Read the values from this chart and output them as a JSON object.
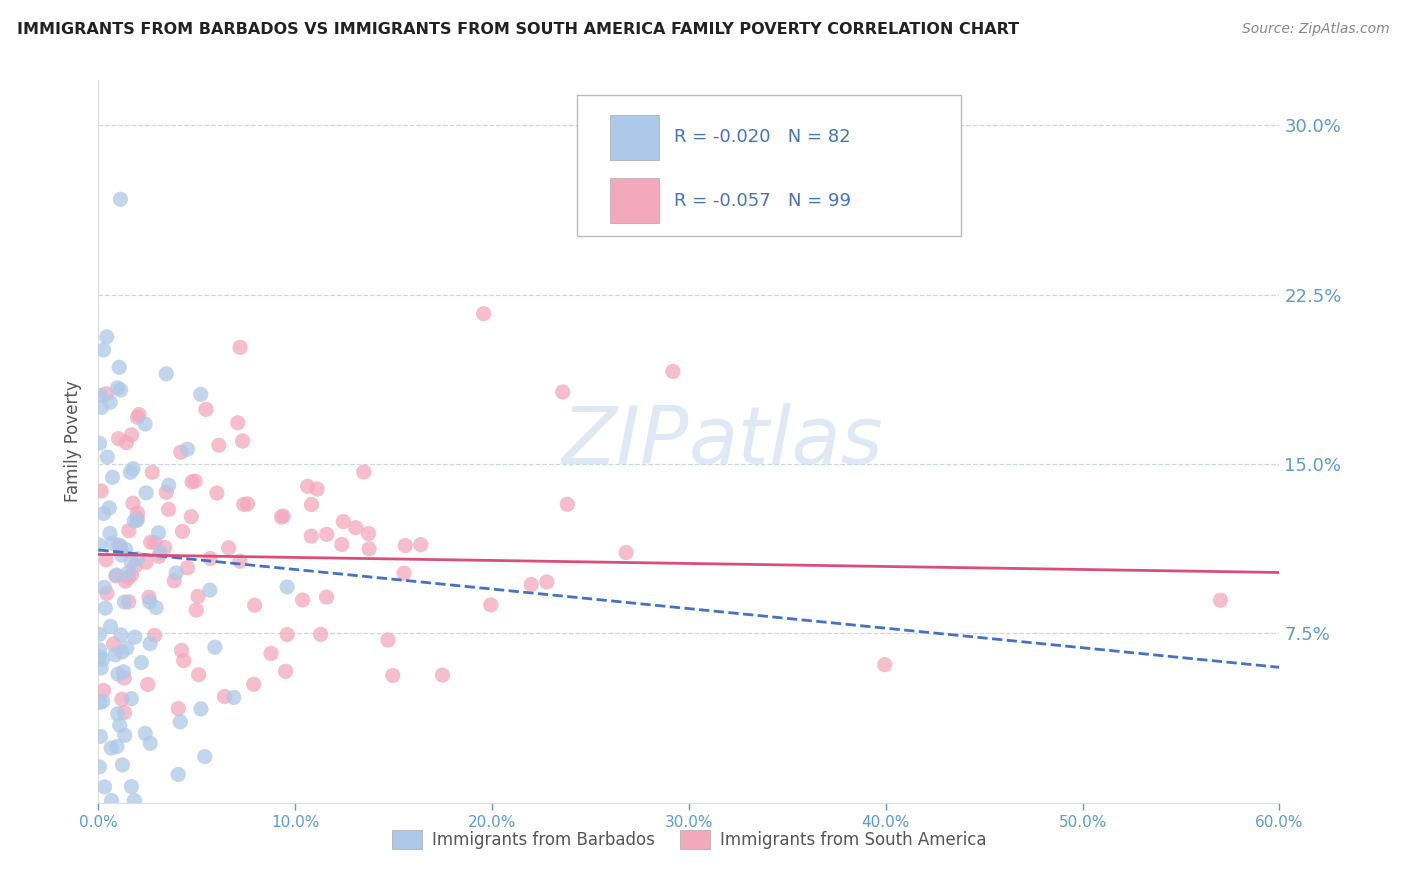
{
  "title": "IMMIGRANTS FROM BARBADOS VS IMMIGRANTS FROM SOUTH AMERICA FAMILY POVERTY CORRELATION CHART",
  "source_text": "Source: ZipAtlas.com",
  "ylabel": "Family Poverty",
  "series1_label": "Immigrants from Barbados",
  "series2_label": "Immigrants from South America",
  "series1_R": -0.02,
  "series1_N": 82,
  "series2_R": -0.057,
  "series2_N": 99,
  "xlim": [
    0.0,
    0.6
  ],
  "ylim": [
    0.0,
    0.32
  ],
  "xticks": [
    0.0,
    0.1,
    0.2,
    0.3,
    0.4,
    0.5,
    0.6
  ],
  "yticks": [
    0.0,
    0.075,
    0.15,
    0.225,
    0.3
  ],
  "ytick_labels": [
    "",
    "7.5%",
    "15.0%",
    "22.5%",
    "30.0%"
  ],
  "xtick_labels": [
    "0.0%",
    "10.0%",
    "20.0%",
    "30.0%",
    "40.0%",
    "50.0%",
    "60.0%"
  ],
  "color_barbados": "#adc8e8",
  "color_south_america": "#f4a8bc",
  "line_color_barbados": "#4472c4",
  "line_color_south_america": "#d94f7a",
  "axis_color": "#5b9bd5",
  "watermark_color": "#d0dff0",
  "background_color": "#ffffff",
  "grid_color": "#c8d8e8",
  "seed": 12,
  "legend_text_color": "#333333",
  "legend_value_color": "#4472c4"
}
